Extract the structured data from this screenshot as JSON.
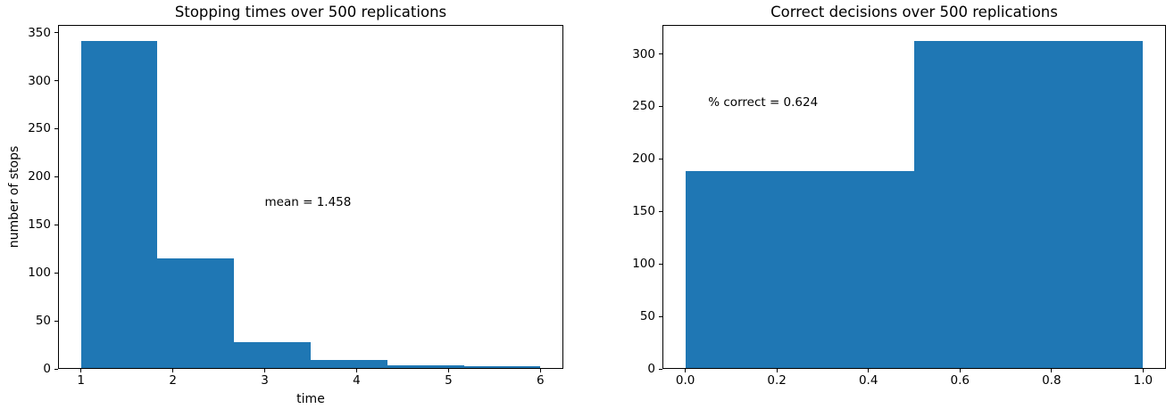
{
  "figure": {
    "background": "#ffffff",
    "bar_color": "#1f77b4",
    "spine_color": "#000000",
    "text_color": "#000000"
  },
  "chart_data": [
    {
      "type": "bar",
      "title": "Stopping times over 500 replications",
      "xlabel": "time",
      "ylabel": "number of stops",
      "bin_edges": [
        1.0,
        1.83333,
        2.66667,
        3.5,
        4.33333,
        5.16667,
        6.0
      ],
      "counts": [
        341,
        115,
        28,
        9,
        4,
        3
      ],
      "annotation": {
        "text": "mean = 1.458",
        "x": 3.0,
        "y": 170
      },
      "xticks": {
        "values": [
          1,
          2,
          3,
          4,
          5,
          6
        ],
        "labels": [
          "1",
          "2",
          "3",
          "4",
          "5",
          "6"
        ]
      },
      "yticks": {
        "values": [
          0,
          50,
          100,
          150,
          200,
          250,
          300,
          350
        ],
        "labels": [
          "0",
          "50",
          "100",
          "150",
          "200",
          "250",
          "300",
          "350"
        ]
      },
      "xlim": [
        0.75,
        6.25
      ],
      "ylim": [
        0,
        358.05
      ],
      "grid": false,
      "legend": null
    },
    {
      "type": "bar",
      "title": "Correct decisions over 500 replications",
      "xlabel": "",
      "ylabel": "",
      "bin_edges": [
        0.0,
        0.5,
        1.0
      ],
      "counts": [
        188,
        312
      ],
      "annotation": {
        "text": "% correct = 0.624",
        "x": 0.05,
        "y": 250
      },
      "xticks": {
        "values": [
          0.0,
          0.2,
          0.4,
          0.6,
          0.8,
          1.0
        ],
        "labels": [
          "0.0",
          "0.2",
          "0.4",
          "0.6",
          "0.8",
          "1.0"
        ]
      },
      "yticks": {
        "values": [
          0,
          50,
          100,
          150,
          200,
          250,
          300
        ],
        "labels": [
          "0",
          "50",
          "100",
          "150",
          "200",
          "250",
          "300"
        ]
      },
      "xlim": [
        -0.05,
        1.05
      ],
      "ylim": [
        0,
        327.6
      ],
      "grid": false,
      "legend": null
    }
  ]
}
